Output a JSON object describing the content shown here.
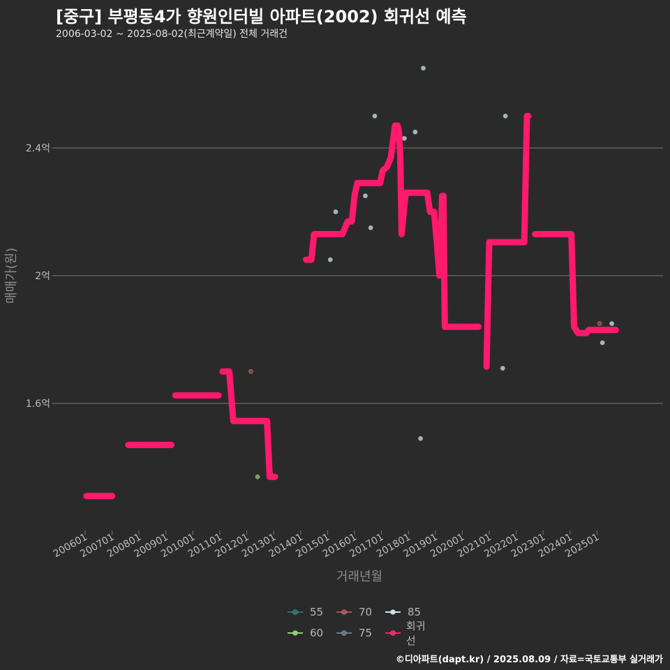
{
  "chart_data": {
    "type": "line",
    "title": "[중구] 부평동4가 향원인터빌 아파트(2002) 회귀선 예측",
    "subtitle": "2006-03-02 ~ 2025-08-02(최근계약일) 전체 거래건",
    "xlabel": "거래년월",
    "ylabel": "매매가(원)",
    "ylim": [
      1.2,
      2.8
    ],
    "y_ticks": [
      1.6,
      2.0,
      2.4
    ],
    "y_tick_labels": [
      "1.6억",
      "2억",
      "2.4억"
    ],
    "x_ticks": [
      2006,
      2007,
      2008,
      2009,
      2010,
      2011,
      2012,
      2013,
      2014,
      2015,
      2016,
      2017,
      2018,
      2019,
      2020,
      2021,
      2022,
      2023,
      2024,
      2025
    ],
    "x_tick_labels": [
      "200601",
      "200701",
      "200801",
      "200901",
      "201001",
      "201101",
      "201201",
      "201301",
      "201401",
      "201501",
      "201601",
      "201701",
      "201801",
      "201901",
      "202001",
      "202101",
      "202201",
      "202301",
      "202401",
      "202501"
    ],
    "grid": "horizontal",
    "legend_position": "bottom",
    "legend": [
      {
        "name": "55",
        "color": "#2a6f73"
      },
      {
        "name": "70",
        "color": "#b0504c"
      },
      {
        "name": "85",
        "color": "#c3e8ee"
      },
      {
        "name": "60",
        "color": "#8fcf6b"
      },
      {
        "name": "75",
        "color": "#5f7a8f"
      },
      {
        "name": "회귀선",
        "color": "#ff1a6b"
      }
    ],
    "scatter": [
      {
        "x": 2012.15,
        "y": 1.7,
        "series": "70"
      },
      {
        "x": 2012.4,
        "y": 1.37,
        "series": "60"
      },
      {
        "x": 2015.1,
        "y": 2.05,
        "series": "85"
      },
      {
        "x": 2015.3,
        "y": 2.2,
        "series": "85"
      },
      {
        "x": 2016.4,
        "y": 2.25,
        "series": "85"
      },
      {
        "x": 2016.6,
        "y": 2.15,
        "series": "85"
      },
      {
        "x": 2016.75,
        "y": 2.5,
        "series": "85"
      },
      {
        "x": 2017.85,
        "y": 2.43,
        "series": "85"
      },
      {
        "x": 2018.25,
        "y": 2.45,
        "series": "85"
      },
      {
        "x": 2018.45,
        "y": 1.49,
        "series": "85"
      },
      {
        "x": 2018.55,
        "y": 2.65,
        "series": "85"
      },
      {
        "x": 2021.5,
        "y": 1.71,
        "series": "85"
      },
      {
        "x": 2021.6,
        "y": 2.5,
        "series": "85"
      },
      {
        "x": 2025.1,
        "y": 1.85,
        "series": "70"
      },
      {
        "x": 2025.2,
        "y": 1.79,
        "series": "85"
      },
      {
        "x": 2025.55,
        "y": 1.85,
        "series": "85"
      }
    ],
    "regression": [
      [
        2006.05,
        1.31
      ],
      [
        2007.0,
        1.31
      ],
      [
        null,
        null
      ],
      [
        2007.6,
        1.47
      ],
      [
        2009.2,
        1.47
      ],
      [
        null,
        null
      ],
      [
        2009.35,
        1.625
      ],
      [
        2010.95,
        1.625
      ],
      [
        null,
        null
      ],
      [
        2011.1,
        1.7
      ],
      [
        2011.35,
        1.7
      ],
      [
        2011.5,
        1.545
      ],
      [
        2012.75,
        1.545
      ],
      [
        2012.85,
        1.37
      ],
      [
        2013.05,
        1.37
      ],
      [
        null,
        null
      ],
      [
        2014.2,
        2.05
      ],
      [
        2014.4,
        2.05
      ],
      [
        2014.5,
        2.13
      ],
      [
        2015.55,
        2.13
      ],
      [
        2015.75,
        2.17
      ],
      [
        2015.9,
        2.17
      ],
      [
        2016.0,
        2.25
      ],
      [
        2016.1,
        2.29
      ],
      [
        2016.95,
        2.29
      ],
      [
        2017.05,
        2.33
      ],
      [
        2017.2,
        2.34
      ],
      [
        2017.35,
        2.37
      ],
      [
        2017.5,
        2.47
      ],
      [
        2017.55,
        2.47
      ],
      [
        2017.6,
        2.47
      ],
      [
        2017.65,
        2.45
      ],
      [
        2017.7,
        2.37
      ],
      [
        2017.75,
        2.13
      ],
      [
        2017.9,
        2.26
      ],
      [
        2018.7,
        2.26
      ],
      [
        2018.8,
        2.2
      ],
      [
        2018.95,
        2.2
      ],
      [
        2019.05,
        2.11
      ],
      [
        2019.15,
        2.0
      ],
      [
        2019.2,
        2.11
      ],
      [
        2019.25,
        2.25
      ],
      [
        2019.3,
        2.25
      ],
      [
        2019.35,
        1.84
      ],
      [
        2020.6,
        1.84
      ],
      [
        null,
        null
      ],
      [
        2020.9,
        1.715
      ],
      [
        2021.0,
        2.105
      ],
      [
        2022.3,
        2.105
      ],
      [
        2022.4,
        2.5
      ],
      [
        2022.45,
        2.5
      ],
      [
        null,
        null
      ],
      [
        2022.7,
        2.13
      ],
      [
        2024.05,
        2.13
      ],
      [
        2024.15,
        1.84
      ],
      [
        2024.3,
        1.82
      ],
      [
        2024.6,
        1.82
      ],
      [
        2024.7,
        1.83
      ],
      [
        2025.7,
        1.83
      ]
    ]
  },
  "footer": {
    "source": "©디아파트(dapt.kr) / 2025.08.09 / 자료=국토교통부 실거래가"
  }
}
